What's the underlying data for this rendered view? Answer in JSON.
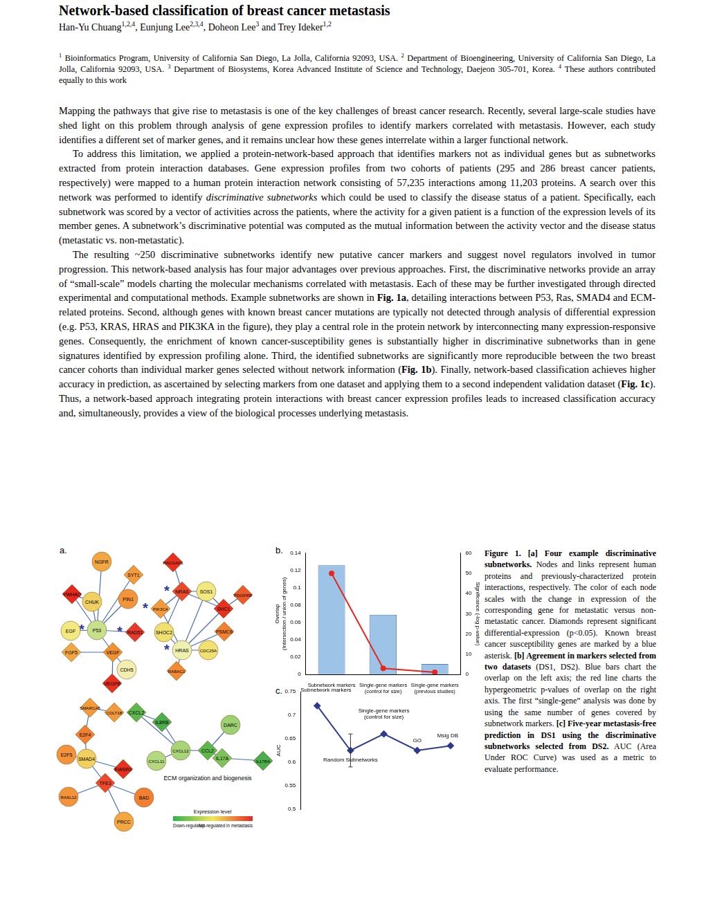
{
  "header": {
    "title": "Network-based classification of breast cancer metastasis",
    "authors": [
      {
        "text": "Han-Yu Chuang"
      },
      {
        "text": "1,2,4",
        "style": "sup"
      },
      {
        "text": ", Eunjung Lee"
      },
      {
        "text": "2,3,4",
        "style": "sup"
      },
      {
        "text": ", Doheon Lee"
      },
      {
        "text": "3",
        "style": "sup"
      },
      {
        "text": " and Trey Ideker"
      },
      {
        "text": "1,2",
        "style": "sup"
      }
    ],
    "affiliations": [
      {
        "text": "1",
        "style": "sup"
      },
      {
        "text": " Bioinformatics Program, University of California San Diego, La Jolla, California 92093, USA. "
      },
      {
        "text": "2",
        "style": "sup"
      },
      {
        "text": " Department of Bioengineering, University of California San Diego, La Jolla, California 92093, USA. "
      },
      {
        "text": "3",
        "style": "sup"
      },
      {
        "text": " Department of Biosystems, Korea Advanced Institute of Science and Technology, Daejeon 305-701, Korea. "
      },
      {
        "text": "4",
        "style": "sup"
      },
      {
        "text": " These authors contributed equally to this work"
      }
    ]
  },
  "body": [
    [
      {
        "text": "Mapping the pathways that give rise to metastasis is one of the key challenges of breast cancer research. Recently, several large-scale studies have shed light on this problem through analysis of gene expression profiles to identify markers correlated with metastasis. However, each study identifies a different set of marker genes, and it remains unclear how these genes interrelate within a larger functional network."
      }
    ],
    [
      {
        "text": "To address this limitation, we applied a protein-network-based approach that identifies markers not as individual genes but as subnetworks extracted from protein interaction databases. Gene expression profiles from two cohorts of patients (295 and 286 breast cancer patients, respectively) were mapped to a human protein interaction network consisting of 57,235 interactions among 11,203 proteins. A search over this network was performed to identify "
      },
      {
        "text": "discriminative subnetworks",
        "style": "italic"
      },
      {
        "text": " which could be used to classify the disease status of a patient. Specifically, each subnetwork was scored by a vector of activities across the patients, where the activity for a given patient is a function of the expression levels of its member genes. A subnetwork’s discriminative potential was computed as the mutual information between the activity vector and the disease status (metastatic vs. non-metastatic)."
      }
    ],
    [
      {
        "text": "The resulting ~250 discriminative subnetworks identify new putative cancer markers and suggest novel regulators involved in tumor progression. This network-based analysis has four major advantages over previous approaches. First, the discriminative networks provide an array of “small-scale” models charting the molecular mechanisms correlated with metastasis. Each of these may be further investigated through directed experimental and computational methods. Example subnetworks are shown in "
      },
      {
        "text": "Fig. 1a",
        "style": "bold"
      },
      {
        "text": ", detailing interactions between P53, Ras, SMAD4 and ECM-related proteins. Second, although genes with known breast cancer mutations are typically not detected through analysis of differential expression (e.g. P53, KRAS, HRAS and PIK3KA in the figure), they play a central role in the protein network by interconnecting many expression-responsive genes. Consequently, the enrichment of known cancer-susceptibility genes is substantially higher in discriminative subnetworks than in gene signatures identified by expression profiling alone. Third, the identified subnetworks are significantly more reproducible between the two breast cancer cohorts than individual marker genes selected without network information ("
      },
      {
        "text": "Fig. 1b",
        "style": "bold"
      },
      {
        "text": "). Finally, network-based classification achieves higher accuracy in prediction, as ascertained by selecting markers from one dataset and applying them to a second independent validation dataset ("
      },
      {
        "text": "Fig. 1c",
        "style": "bold"
      },
      {
        "text": "). Thus, a network-based approach integrating protein interactions with breast cancer expression profiles leads to increased classification accuracy and, simultaneously, provides a view of the biological processes underlying metastasis."
      }
    ]
  ],
  "figure": {
    "panel_labels": [
      "a.",
      "b.",
      "c."
    ],
    "panel_a": {
      "susceptibility_mark": "*",
      "module_label": "ECM organization and biogenesis",
      "legend_title": "Expression level",
      "legend_low": "Down-regulated",
      "legend_high": "Up-regulated in metastasis",
      "gradient": [
        "#2db34a",
        "#f2e65a",
        "#e8261e"
      ],
      "nodes": [
        {
          "label": "NGFR",
          "shape": "circle",
          "color": "#f4a640"
        },
        {
          "label": "SYT1",
          "shape": "diamond",
          "color": "#f39a3a"
        },
        {
          "label": "YWHAQ",
          "shape": "diamond",
          "color": "#e8261e"
        },
        {
          "label": "CHUK",
          "shape": "circle",
          "color": "#f0d060"
        },
        {
          "label": "PIN1",
          "shape": "circle",
          "color": "#f4943a"
        },
        {
          "label": "P53",
          "shape": "circle",
          "color": "#c8e08a",
          "marked": true
        },
        {
          "label": "RAD51",
          "shape": "diamond",
          "color": "#e83a2a",
          "marked": true
        },
        {
          "label": "EGF",
          "shape": "circle",
          "color": "#f2ea80"
        },
        {
          "label": "FGF5",
          "shape": "diamond",
          "color": "#f4a640"
        },
        {
          "label": "VEGF",
          "shape": "diamond",
          "color": "#f39030"
        },
        {
          "label": "CDH5",
          "shape": "circle",
          "color": "#f2eeb0"
        },
        {
          "label": "VEGFB",
          "shape": "diamond",
          "color": "#e8301e"
        },
        {
          "label": "RACGAP1",
          "shape": "diamond",
          "color": "#e8301e"
        },
        {
          "label": "NRAS",
          "shape": "diamond",
          "color": "#ec4a2a",
          "marked": true
        },
        {
          "label": "SOS1",
          "shape": "circle",
          "color": "#f2e880"
        },
        {
          "label": "PDGFRB",
          "shape": "diamond",
          "color": "#ee5a28"
        },
        {
          "label": "PIK3CA",
          "shape": "diamond",
          "color": "#f49a3a",
          "marked": true
        },
        {
          "label": "SHC1",
          "shape": "diamond",
          "color": "#e8301e"
        },
        {
          "label": "SHOC2",
          "shape": "circle",
          "color": "#f0e070"
        },
        {
          "label": "PSMC6",
          "shape": "diamond",
          "color": "#f28030"
        },
        {
          "label": "HRAS",
          "shape": "circle",
          "color": "#eef0b0",
          "marked": true
        },
        {
          "label": "CDC25A",
          "shape": "circle",
          "color": "#f2e070"
        },
        {
          "label": "RABAC1",
          "shape": "diamond",
          "color": "#f38a30"
        },
        {
          "label": "SMARCA5",
          "shape": "diamond",
          "color": "#f39a3a"
        },
        {
          "label": "COLT1B",
          "shape": "diamond",
          "color": "#f39a3a"
        },
        {
          "label": "E2F4",
          "shape": "diamond",
          "color": "#f28030"
        },
        {
          "label": "E2F5",
          "shape": "circle",
          "color": "#f4943a"
        },
        {
          "label": "SMAD4",
          "shape": "circle",
          "color": "#f2d060"
        },
        {
          "label": "EWSR1",
          "shape": "diamond",
          "color": "#e8301e"
        },
        {
          "label": "TFE3",
          "shape": "diamond",
          "color": "#ec4a2a"
        },
        {
          "label": "RASL12",
          "shape": "circle",
          "color": "#f4943a"
        },
        {
          "label": "BAD",
          "shape": "circle",
          "color": "#f28030"
        },
        {
          "label": "PRCC",
          "shape": "circle",
          "color": "#f4a640"
        },
        {
          "label": "CXCL2",
          "shape": "diamond",
          "color": "#5cb84a"
        },
        {
          "label": "IL8RB",
          "shape": "diamond",
          "color": "#4aae4a"
        },
        {
          "label": "DARC",
          "shape": "circle",
          "color": "#9cd070"
        },
        {
          "label": "CXCL12",
          "shape": "circle",
          "color": "#a8d478"
        },
        {
          "label": "CXCL11",
          "shape": "circle",
          "color": "#b4d880"
        },
        {
          "label": "CCL2",
          "shape": "diamond",
          "color": "#5cb84a"
        },
        {
          "label": "IL17A",
          "shape": "diamond",
          "color": "#7cc45a"
        },
        {
          "label": "IL17RA",
          "shape": "diamond",
          "color": "#4aae4a"
        }
      ],
      "edges": [
        [
          0,
          5
        ],
        [
          1,
          5
        ],
        [
          2,
          5
        ],
        [
          3,
          5
        ],
        [
          4,
          5
        ],
        [
          6,
          5
        ],
        [
          7,
          5
        ],
        [
          8,
          9
        ],
        [
          5,
          9
        ],
        [
          9,
          10
        ],
        [
          9,
          11
        ],
        [
          2,
          3
        ],
        [
          12,
          13
        ],
        [
          13,
          14
        ],
        [
          13,
          16
        ],
        [
          13,
          17
        ],
        [
          14,
          20
        ],
        [
          14,
          17
        ],
        [
          15,
          17
        ],
        [
          17,
          20
        ],
        [
          16,
          20
        ],
        [
          18,
          20
        ],
        [
          19,
          20
        ],
        [
          20,
          21
        ],
        [
          20,
          22
        ],
        [
          13,
          18
        ],
        [
          23,
          24
        ],
        [
          23,
          25
        ],
        [
          25,
          27
        ],
        [
          26,
          27
        ],
        [
          27,
          28
        ],
        [
          27,
          29
        ],
        [
          29,
          30
        ],
        [
          29,
          31
        ],
        [
          29,
          32
        ],
        [
          33,
          34
        ],
        [
          34,
          36
        ],
        [
          33,
          36
        ],
        [
          36,
          37
        ],
        [
          36,
          38
        ],
        [
          38,
          35
        ],
        [
          38,
          39
        ],
        [
          39,
          40
        ]
      ]
    },
    "caption": [
      {
        "text": "Figure 1. [a] Four example discriminative subnetworks.",
        "style": "bold"
      },
      {
        "text": " Nodes and links represent human proteins and previously-characterized protein interactions, respectively. The color of each node scales with the change in expression of the corresponding gene for metastatic versus non-metastatic cancer. Diamonds represent significant differential-expression (p<0.05). Known breast cancer susceptibility genes are marked by a blue asterisk. "
      },
      {
        "text": "[b] Agreement in markers selected from two datasets",
        "style": "bold"
      },
      {
        "text": " (DS1, DS2). Blue bars chart the overlap on the left axis; the red line charts the hypergeometric p-values of overlap on the right axis. The first “single-gene” analysis was done by using the same number of genes covered by subnetwork markers. "
      },
      {
        "text": "[c] Five-year metastasis-free prediction in DS1 using the discriminative subnetworks selected from DS2.",
        "style": "bold"
      },
      {
        "text": " AUC (Area Under ROC Curve) was used as a metric to evaluate performance."
      }
    ]
  },
  "chart_data": [
    {
      "type": "bar",
      "categories": [
        "Subnetwork markers",
        "Single-gene markers (control for size)",
        "Single-gene markers (previous studies)"
      ],
      "series": [
        {
          "type": "bar",
          "color": "#9dc3e6",
          "values": [
            0.126,
            0.069,
            0.012
          ]
        },
        {
          "type": "line",
          "axis": "y2",
          "color": "#e8261e",
          "marker": "circle",
          "values": [
            50,
            3,
            1
          ]
        }
      ],
      "y_label": [
        "Overlap",
        "(Intersection / union of genes)"
      ],
      "y2_label": "Significance (-log p-value)",
      "ylim": [
        0,
        0.14
      ],
      "yticks": [
        0,
        0.02,
        0.04,
        0.06,
        0.08,
        0.1,
        0.12,
        0.14
      ],
      "y2lim": [
        0,
        60
      ],
      "y2ticks": [
        0,
        10,
        20,
        30,
        40,
        50,
        60
      ],
      "grid": false
    },
    {
      "type": "line",
      "categories": [
        "Subnetwork markers",
        "Random Subnetworks",
        "Single-gene markers (control for size)",
        "GO",
        "Msig DB"
      ],
      "values": [
        0.72,
        0.625,
        0.66,
        0.625,
        0.635
      ],
      "errors": [
        null,
        0.035,
        null,
        null,
        null
      ],
      "color": "#2e3a8c",
      "marker": "diamond",
      "y_label": "AUC",
      "ylim": [
        0.5,
        0.75
      ],
      "yticks": [
        0.5,
        0.55,
        0.6,
        0.65,
        0.7,
        0.75
      ],
      "grid": false,
      "tick_labels": "y"
    }
  ]
}
